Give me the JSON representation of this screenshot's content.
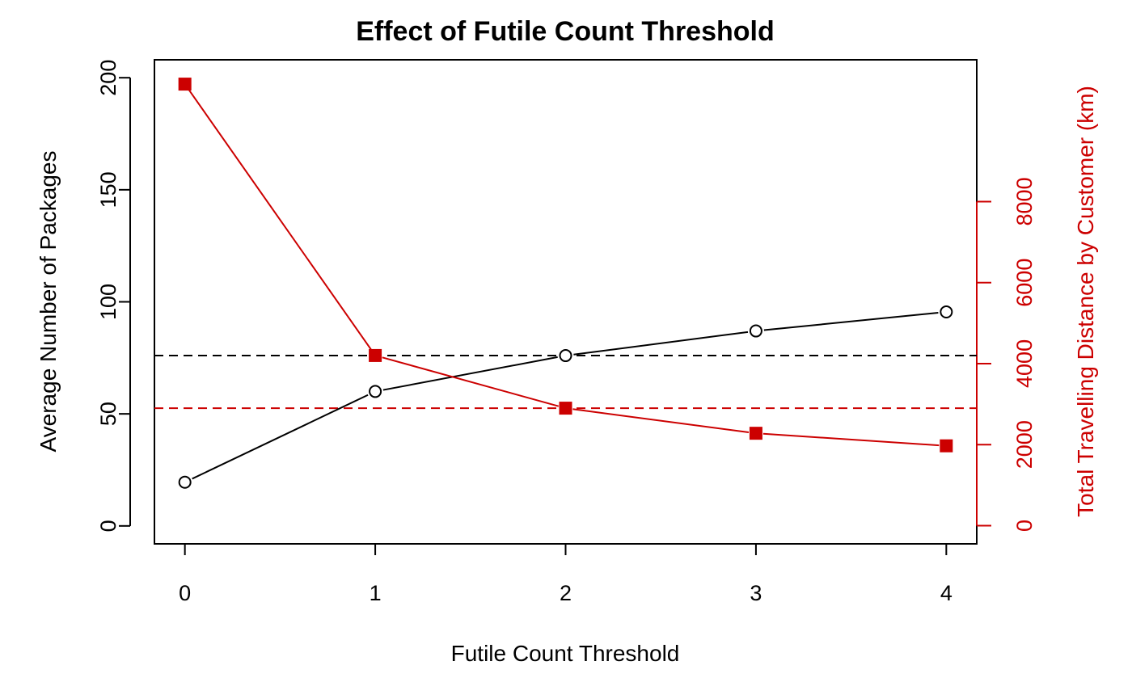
{
  "chart_data": {
    "type": "line",
    "title": "Effect of Futile Count Threshold",
    "xlabel": "Futile Count Threshold",
    "ylabel": "Average Number of Packages",
    "y2label": "Total Travelling Distance by Customer (km)",
    "x": [
      0,
      1,
      2,
      3,
      4
    ],
    "xticks": [
      "0",
      "1",
      "2",
      "3",
      "4"
    ],
    "xlim": [
      -0.16,
      4.16
    ],
    "ylim": [
      -8,
      208
    ],
    "yticks": [
      "0",
      "50",
      "100",
      "150",
      "200"
    ],
    "y2lim": [
      -450,
      11500
    ],
    "y2ticks": [
      "0",
      "2000",
      "4000",
      "6000",
      "8000"
    ],
    "grid": false,
    "legend": "none",
    "series": [
      {
        "axis": "left",
        "marker": "open-circle",
        "color": "#000000",
        "values": [
          19.5,
          60,
          76,
          87,
          95.5
        ]
      },
      {
        "axis": "right",
        "marker": "filled-square",
        "color": "#cc0000",
        "values": [
          10900,
          4200,
          2900,
          2280,
          1970
        ]
      }
    ],
    "reference_lines": [
      {
        "axis": "left",
        "value": 76,
        "style": "dashed",
        "color": "#000000"
      },
      {
        "axis": "right",
        "value": 2900,
        "style": "dashed",
        "color": "#cc0000"
      }
    ]
  }
}
